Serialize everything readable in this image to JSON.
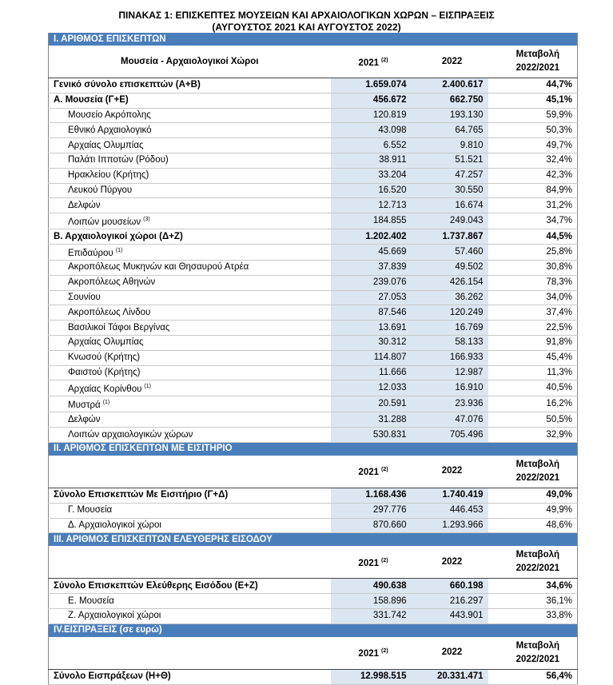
{
  "title": {
    "line1": "ΠΙΝΑΚΑΣ 1: ΕΠΙΣΚΕΠΤΕΣ ΜΟΥΣΕΙΩΝ ΚΑΙ ΑΡΧΑΙΟΛΟΓΙΚΩΝ ΧΩΡΩΝ – ΕΙΣΠΡΑΞΕΙΣ",
    "line2": "(ΑΥΓΟΥΣΤΟΣ 2021 ΚΑΙ ΑΥΓΟΥΣΤΟΣ 2022)"
  },
  "sections": [
    {
      "title": "Ι. ΑΡΙΘΜΟΣ ΕΠΙΣΚΕΠΤΩΝ",
      "header": {
        "label": "Μουσεία - Αρχαιολογικοί Χώροι",
        "y2021": "2021",
        "y2021_note": "(2)",
        "y2022": "2022",
        "change": "Μεταβολή 2022/2021"
      },
      "total": {
        "label": "Γενικό σύνολο επισκεπτών (Α+Β)",
        "y2021": "1.659.074",
        "y2022": "2.400.617",
        "change": "44,7%"
      },
      "groups": [
        {
          "subtotal": {
            "label": "Α. Μουσεία (Γ+Ε)",
            "y2021": "456.672",
            "y2022": "662.750",
            "change": "45,1%"
          },
          "items": [
            {
              "label": "Μουσείο Ακρόπολης",
              "y2021": "120.819",
              "y2022": "193.130",
              "change": "59,9%"
            },
            {
              "label": "Εθνικό Αρχαιολογικό",
              "y2021": "43.098",
              "y2022": "64.765",
              "change": "50,3%"
            },
            {
              "label": "Αρχαίας Ολυμπίας",
              "y2021": "6.552",
              "y2022": "9.810",
              "change": "49,7%"
            },
            {
              "label": "Παλάτι Ιπποτών (Ρόδου)",
              "y2021": "38.911",
              "y2022": "51.521",
              "change": "32,4%"
            },
            {
              "label": "Ηρακλείου (Κρήτης)",
              "y2021": "33.204",
              "y2022": "47.257",
              "change": "42,3%"
            },
            {
              "label": "Λευκού Πύργου",
              "y2021": "16.520",
              "y2022": "30.550",
              "change": "84,9%"
            },
            {
              "label": "Δελφών",
              "y2021": "12.713",
              "y2022": "16.674",
              "change": "31,2%"
            },
            {
              "label": "Λοιπών μουσείων",
              "note": "(3)",
              "y2021": "184.855",
              "y2022": "249.043",
              "change": "34,7%"
            }
          ]
        },
        {
          "subtotal": {
            "label": "Β. Αρχαιολογικοί χώροι (Δ+Ζ)",
            "y2021": "1.202.402",
            "y2022": "1.737.867",
            "change": "44,5%"
          },
          "items": [
            {
              "label": "Επιδαύρου",
              "note": "(1)",
              "y2021": "45.669",
              "y2022": "57.460",
              "change": "25,8%"
            },
            {
              "label": "Ακροπόλεως Μυκηνών και Θησαυρού Ατρέα",
              "y2021": "37.839",
              "y2022": "49.502",
              "change": "30,8%"
            },
            {
              "label": "Ακροπόλεως Αθηνών",
              "y2021": "239.076",
              "y2022": "426.154",
              "change": "78,3%"
            },
            {
              "label": "Σουνίου",
              "y2021": "27.053",
              "y2022": "36.262",
              "change": "34,0%"
            },
            {
              "label": "Ακροπόλεως Λίνδου",
              "y2021": "87.546",
              "y2022": "120.249",
              "change": "37,4%"
            },
            {
              "label": "Βασιλικοί Τάφοι Βεργίνας",
              "y2021": "13.691",
              "y2022": "16.769",
              "change": "22,5%"
            },
            {
              "label": "Αρχαίας Ολυμπίας",
              "y2021": "30.312",
              "y2022": "58.133",
              "change": "91,8%"
            },
            {
              "label": "Κνωσού (Κρήτης)",
              "y2021": "114.807",
              "y2022": "166.933",
              "change": "45,4%"
            },
            {
              "label": "Φαιστού (Κρήτης)",
              "y2021": "11.666",
              "y2022": "12.987",
              "change": "11,3%"
            },
            {
              "label": "Αρχαίας Κορίνθου",
              "note": "(1)",
              "y2021": "12.033",
              "y2022": "16.910",
              "change": "40,5%"
            },
            {
              "label": "Μυστρά",
              "note": "(1)",
              "y2021": "20.591",
              "y2022": "23.936",
              "change": "16,2%"
            },
            {
              "label": "Δελφών",
              "y2021": "31.288",
              "y2022": "47.076",
              "change": "50,5%"
            },
            {
              "label": "Λοιπών αρχαιολογικών χώρων",
              "y2021": "530.831",
              "y2022": "705.496",
              "change": "32,9%"
            }
          ]
        }
      ]
    },
    {
      "title": "ΙΙ. ΑΡΙΘΜΟΣ ΕΠΙΣΚΕΠΤΩΝ ΜΕ ΕΙΣΙΤΗΡΙΟ",
      "header": {
        "y2021": "2021",
        "y2021_note": "(2)",
        "y2022": "2022",
        "change": "Μεταβολή 2022/2021"
      },
      "total": {
        "label": "Σύνολο Επισκεπτών Με Εισιτήριο (Γ+Δ)",
        "y2021": "1.168.436",
        "y2022": "1.740.419",
        "change": "49,0%"
      },
      "items": [
        {
          "label": "Γ. Μουσεία",
          "y2021": "297.776",
          "y2022": "446.453",
          "change": "49,9%"
        },
        {
          "label": "Δ. Αρχαιολογικοί χώροι",
          "y2021": "870.660",
          "y2022": "1.293.966",
          "change": "48,6%"
        }
      ]
    },
    {
      "title": "ΙΙΙ. ΑΡΙΘΜΟΣ ΕΠΙΣΚΕΠΤΩΝ ΕΛΕΥΘΕΡΗΣ ΕΙΣΟΔΟΥ",
      "header": {
        "y2021": "2021",
        "y2021_note": "(2)",
        "y2022": "2022",
        "change": "Μεταβολή 2022/2021"
      },
      "total": {
        "label": "Σύνολο Επισκεπτών Ελεύθερης Εισόδου (Ε+Ζ)",
        "y2021": "490.638",
        "y2022": "660.198",
        "change": "34,6%"
      },
      "items": [
        {
          "label": "Ε. Μουσεία",
          "y2021": "158.896",
          "y2022": "216.297",
          "change": "36,1%"
        },
        {
          "label": "Ζ. Αρχαιολογικοί χώροι",
          "y2021": "331.742",
          "y2022": "443.901",
          "change": "33,8%"
        }
      ]
    },
    {
      "title": "IV.ΕΙΣΠΡΑΞΕΙΣ (σε ευρώ)",
      "header": {
        "y2021": "2021",
        "y2021_note": "(2)",
        "y2022": "2022",
        "change": "Μεταβολή 2022/2021"
      },
      "total": {
        "label": "Σύνολο Εισπράξεων (Η+Θ)",
        "y2021": "12.998.515",
        "y2022": "20.331.471",
        "change": "56,4%"
      }
    }
  ]
}
